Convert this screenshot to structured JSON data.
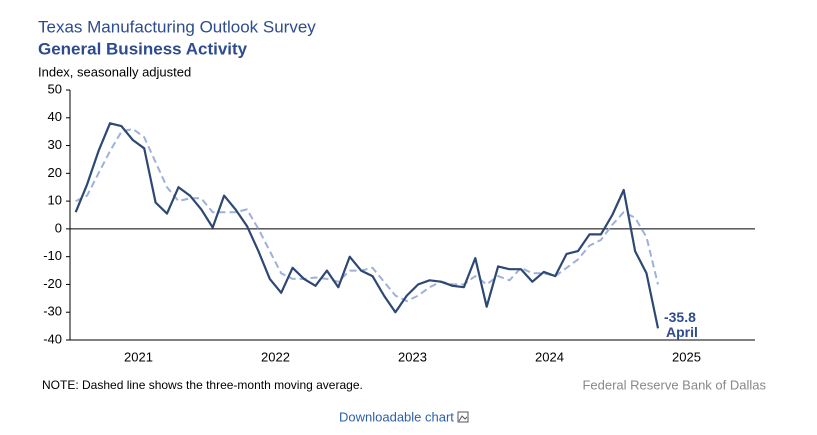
{
  "chart_data": {
    "type": "line",
    "title": "Texas Manufacturing Outlook Survey",
    "subtitle": "General Business Activity",
    "ylabel": "Index, seasonally adjusted",
    "note": "NOTE: Dashed line shows the three-month  moving average.",
    "source": "Federal Reserve Bank of Dallas",
    "link": "Downloadable chart",
    "annotation": "April",
    "xlim": [
      2021,
      2026
    ],
    "xticks": [
      {
        "value": 2021.5,
        "label": "2021"
      },
      {
        "value": 2022.5,
        "label": "2022"
      },
      {
        "value": 2023.5,
        "label": "2023"
      },
      {
        "value": 2024.5,
        "label": "2024"
      },
      {
        "value": 2025.5,
        "label": "2025"
      }
    ],
    "ylim": [
      -40,
      50
    ],
    "yticks": [
      -40,
      -30,
      -20,
      -10,
      0,
      10,
      20,
      30,
      40,
      50
    ],
    "x": [
      2021.0417,
      2021.125,
      2021.2083,
      2021.2917,
      2021.375,
      2021.4583,
      2021.5417,
      2021.625,
      2021.7083,
      2021.7917,
      2021.875,
      2021.9583,
      2022.0417,
      2022.125,
      2022.2083,
      2022.2917,
      2022.375,
      2022.4583,
      2022.5417,
      2022.625,
      2022.7083,
      2022.7917,
      2022.875,
      2022.9583,
      2023.0417,
      2023.125,
      2023.2083,
      2023.2917,
      2023.375,
      2023.4583,
      2023.5417,
      2023.625,
      2023.7083,
      2023.7917,
      2023.875,
      2023.9583,
      2024.0417,
      2024.125,
      2024.2083,
      2024.2917,
      2024.375,
      2024.4583,
      2024.5417,
      2024.625,
      2024.7083,
      2024.7917,
      2024.875,
      2024.9583,
      2025.0417,
      2025.125,
      2025.2083,
      2025.2917
    ],
    "series": [
      {
        "color": "#2d4872",
        "style": "solid",
        "values": [
          6,
          16,
          28,
          38,
          37,
          32,
          29,
          9.5,
          5.5,
          15,
          12,
          7,
          0.5,
          12,
          7,
          1,
          -8,
          -18,
          -23,
          -14,
          -18,
          -20.5,
          -15,
          -21,
          -10,
          -15,
          -17,
          -24,
          -30,
          -24,
          -20,
          -18.5,
          -19,
          -20.5,
          -21,
          -10.5,
          -28,
          -13.5,
          -14.5,
          -14.5,
          -19,
          -15.5,
          -17,
          -9,
          -8,
          -2,
          -2,
          5,
          14,
          -8,
          -16,
          -35.8
        ]
      },
      {
        "color": "#9db1d9",
        "style": "dashed",
        "values": [
          10,
          12,
          20,
          28,
          35,
          36,
          33,
          24,
          15,
          10,
          11,
          11,
          6,
          6,
          6,
          7,
          0,
          -8,
          -16,
          -18,
          -18,
          -17.5,
          -18,
          -19,
          -15,
          -15,
          -14,
          -19,
          -24,
          -26,
          -24,
          -21,
          -19,
          -20,
          -20,
          -17,
          -20,
          -17,
          -18.5,
          -14,
          -16,
          -16,
          -17,
          -14,
          -11,
          -6,
          -4,
          1.5,
          6,
          4,
          -3,
          -20
        ]
      }
    ]
  }
}
